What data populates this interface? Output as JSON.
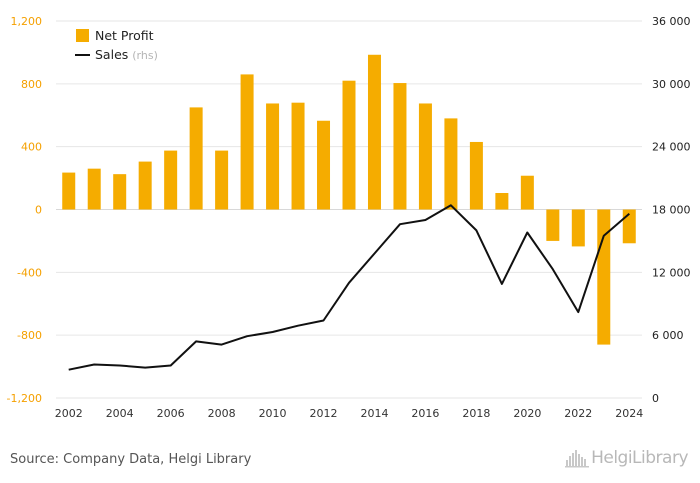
{
  "chart_data": {
    "type": "bar",
    "categories": [
      "2002",
      "2003",
      "2004",
      "2005",
      "2006",
      "2007",
      "2008",
      "2009",
      "2010",
      "2011",
      "2012",
      "2013",
      "2014",
      "2015",
      "2016",
      "2017",
      "2018",
      "2019",
      "2020",
      "2021",
      "2022",
      "2023",
      "2024"
    ],
    "series": [
      {
        "name": "Net Profit",
        "kind": "bar",
        "axis": "left",
        "color": "#f5ac00",
        "values": [
          235,
          260,
          225,
          305,
          375,
          650,
          375,
          860,
          675,
          680,
          565,
          820,
          985,
          805,
          675,
          580,
          430,
          105,
          215,
          -200,
          -235,
          -860,
          -215
        ]
      },
      {
        "name": "Sales",
        "note": "(rhs)",
        "kind": "line",
        "axis": "right",
        "color": "#111111",
        "values": [
          2700,
          3200,
          3100,
          2900,
          3100,
          5400,
          5100,
          5900,
          6300,
          6900,
          7400,
          11000,
          13800,
          16600,
          17000,
          18400,
          16000,
          10900,
          15800,
          12300,
          8200,
          15500,
          17600
        ]
      }
    ],
    "ylim": [
      -1200,
      1200
    ],
    "yticks": [
      "1,200",
      "800",
      "400",
      "0",
      "-400",
      "-800",
      "-1,200"
    ],
    "y2lim": [
      0,
      36000
    ],
    "y2ticks": [
      "36 000",
      "30 000",
      "24 000",
      "18 000",
      "12 000",
      "6 000",
      "0"
    ],
    "xticks": [
      "2002",
      "2004",
      "2006",
      "2008",
      "2010",
      "2012",
      "2014",
      "2016",
      "2018",
      "2020",
      "2022",
      "2024"
    ],
    "grid": true,
    "legend_position": "top-left"
  },
  "footer": {
    "source": "Source: Company Data, Helgi Library",
    "logo": "HelgiLibrary"
  },
  "colors": {
    "bar": "#f5ac00",
    "line": "#111111",
    "left_axis": "#f5a000",
    "grid": "#e6e6e6"
  }
}
